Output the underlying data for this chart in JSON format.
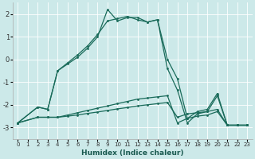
{
  "title": "",
  "xlabel": "Humidex (Indice chaleur)",
  "xlim": [
    -0.5,
    23.5
  ],
  "ylim": [
    -3.5,
    2.5
  ],
  "yticks": [
    -3,
    -2,
    -1,
    0,
    1,
    2
  ],
  "xticks": [
    0,
    1,
    2,
    3,
    4,
    5,
    6,
    7,
    8,
    9,
    10,
    11,
    12,
    13,
    14,
    15,
    16,
    17,
    18,
    19,
    20,
    21,
    22,
    23
  ],
  "bg_color": "#cce9e9",
  "line_color": "#1a6b5a",
  "grid_color": "#ffffff",
  "lines": [
    {
      "x": [
        0,
        2,
        3,
        4,
        5,
        6,
        7,
        8,
        9,
        10,
        11,
        12,
        13,
        14,
        15,
        16,
        17,
        18,
        19,
        20,
        21,
        22,
        23
      ],
      "y": [
        -2.8,
        -2.55,
        -2.55,
        -2.55,
        -2.45,
        -2.35,
        -2.25,
        -2.15,
        -2.05,
        -1.95,
        -1.85,
        -1.75,
        -1.7,
        -1.65,
        -1.6,
        -2.8,
        -2.6,
        -2.5,
        -2.45,
        -2.3,
        -2.9,
        -2.9,
        -2.9
      ]
    },
    {
      "x": [
        0,
        2,
        3,
        4,
        5,
        6,
        7,
        8,
        9,
        10,
        11,
        12,
        13,
        14,
        15,
        16,
        17,
        18,
        19,
        20,
        21,
        22,
        23
      ],
      "y": [
        -2.8,
        -2.55,
        -2.55,
        -2.55,
        -2.5,
        -2.45,
        -2.38,
        -2.32,
        -2.25,
        -2.18,
        -2.12,
        -2.05,
        -2.0,
        -1.95,
        -1.9,
        -2.55,
        -2.4,
        -2.35,
        -2.3,
        -2.2,
        -2.9,
        -2.9,
        -2.9
      ]
    },
    {
      "x": [
        0,
        2,
        3,
        4,
        5,
        6,
        7,
        8,
        9,
        10,
        11,
        12,
        13,
        14,
        15,
        16,
        17,
        18,
        19,
        20,
        21,
        22,
        23
      ],
      "y": [
        -2.8,
        -2.1,
        -2.2,
        -0.5,
        -0.2,
        0.1,
        0.5,
        1.0,
        2.2,
        1.7,
        1.85,
        1.85,
        1.65,
        1.75,
        -0.4,
        -1.35,
        -2.8,
        -2.4,
        -2.3,
        -1.6,
        -2.9,
        -2.9,
        -2.9
      ]
    },
    {
      "x": [
        0,
        2,
        3,
        4,
        5,
        6,
        7,
        8,
        9,
        10,
        11,
        12,
        13,
        14,
        15,
        16,
        17,
        18,
        19,
        20,
        21,
        22,
        23
      ],
      "y": [
        -2.8,
        -2.1,
        -2.2,
        -0.5,
        -0.15,
        0.2,
        0.6,
        1.1,
        1.7,
        1.8,
        1.9,
        1.75,
        1.65,
        1.75,
        0.0,
        -0.85,
        -2.6,
        -2.3,
        -2.2,
        -1.5,
        -2.9,
        -2.9,
        -2.9
      ]
    }
  ]
}
